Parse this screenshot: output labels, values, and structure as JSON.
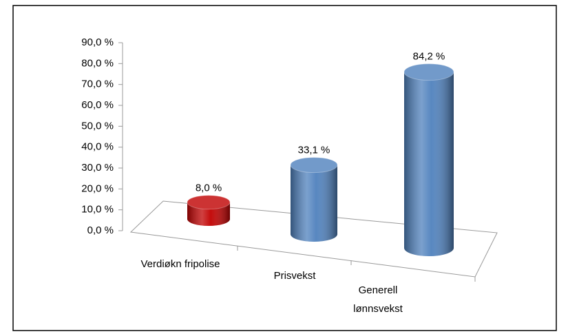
{
  "chart_data": {
    "type": "bar",
    "categories": [
      "Verdiøkn fripolise",
      "Prisvekst",
      "Generell lønnsvekst"
    ],
    "values": [
      8.0,
      33.1,
      84.2
    ],
    "value_labels": [
      "8,0 %",
      "33,1 %",
      "84,2 %"
    ],
    "colors": [
      "#c00000",
      "#4f81bd",
      "#4f81bd"
    ],
    "ylim": [
      0,
      90
    ],
    "yticks": [
      {
        "value": 0,
        "label": "0,0 %"
      },
      {
        "value": 10,
        "label": "10,0 %"
      },
      {
        "value": 20,
        "label": "20,0 %"
      },
      {
        "value": 30,
        "label": "30,0 %"
      },
      {
        "value": 40,
        "label": "40,0 %"
      },
      {
        "value": 50,
        "label": "50,0 %"
      },
      {
        "value": 60,
        "label": "60,0 %"
      },
      {
        "value": 70,
        "label": "70,0 %"
      },
      {
        "value": 80,
        "label": "80,0 %"
      },
      {
        "value": 90,
        "label": "90,0 %"
      }
    ],
    "grid": false
  }
}
